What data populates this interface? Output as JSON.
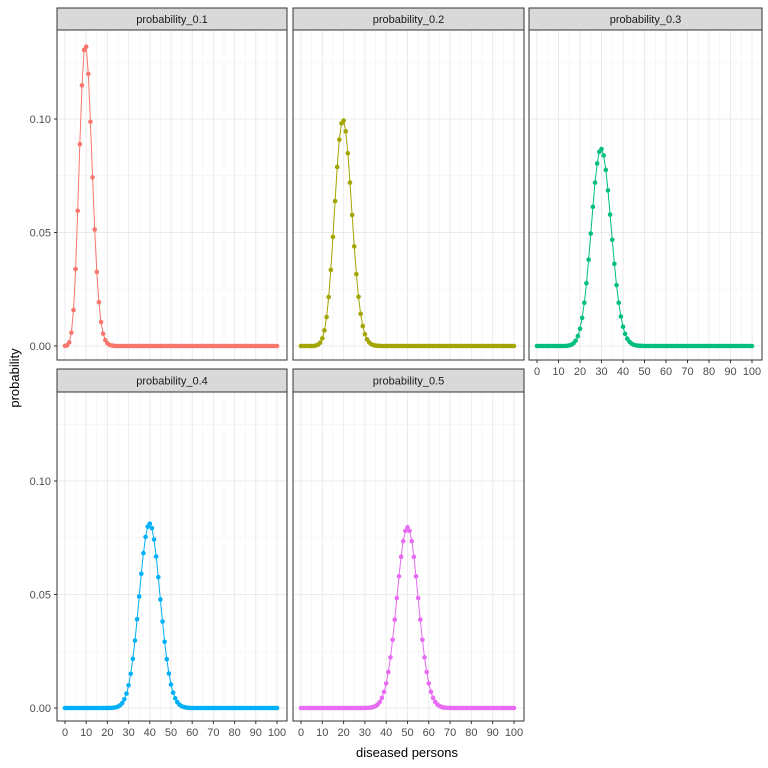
{
  "chart_data": {
    "type": "line",
    "xlabel": "diseased persons",
    "ylabel": "probability",
    "xlim": [
      0,
      100
    ],
    "ylim": [
      0,
      0.13
    ],
    "x_ticks": [
      0,
      10,
      20,
      30,
      40,
      50,
      60,
      70,
      80,
      90,
      100
    ],
    "y_ticks": [
      "0.00",
      "0.05",
      "0.10"
    ],
    "y_tick_values": [
      0,
      0.05,
      0.1
    ],
    "grid": true,
    "markers": true,
    "x": [
      0,
      1,
      2,
      3,
      4,
      5,
      6,
      7,
      8,
      9,
      10,
      11,
      12,
      13,
      14,
      15,
      16,
      17,
      18,
      19,
      20,
      21,
      22,
      23,
      24,
      25,
      26,
      27,
      28,
      29,
      30,
      31,
      32,
      33,
      34,
      35,
      36,
      37,
      38,
      39,
      40,
      41,
      42,
      43,
      44,
      45,
      46,
      47,
      48,
      49,
      50,
      51,
      52,
      53,
      54,
      55,
      56,
      57,
      58,
      59,
      60,
      61,
      62,
      63,
      64,
      65,
      66,
      67,
      68,
      69,
      70,
      71,
      72,
      73,
      74,
      75,
      76,
      77,
      78,
      79,
      80,
      81,
      82,
      83,
      84,
      85,
      86,
      87,
      88,
      89,
      90,
      91,
      92,
      93,
      94,
      95,
      96,
      97,
      98,
      99,
      100
    ],
    "series": [
      {
        "name": "probability_0.1",
        "color": "#F8766D",
        "values": [
          3e-05,
          0.0003,
          0.00162,
          0.00589,
          0.01588,
          0.03387,
          0.05958,
          0.0889,
          0.11482,
          0.13042,
          0.13187,
          0.11988,
          0.09879,
          0.0743,
          0.0513,
          0.03268,
          0.01929,
          0.01059,
          0.00543,
          0.0026,
          0.00117,
          0.0005,
          0.0002,
          7e-05,
          0,
          0,
          0,
          0,
          0,
          0,
          0,
          0,
          0,
          0,
          0,
          0,
          0,
          0,
          0,
          0,
          0,
          0,
          0,
          0,
          0,
          0,
          0,
          0,
          0,
          0,
          0,
          0,
          0,
          0,
          0,
          0,
          0,
          0,
          0,
          0,
          0,
          0,
          0,
          0,
          0,
          0,
          0,
          0,
          0,
          0,
          0,
          0,
          0,
          0,
          0,
          0,
          0,
          0,
          0,
          0,
          0,
          0,
          0,
          0,
          0,
          0,
          0,
          0,
          0,
          0,
          0,
          0,
          0,
          0,
          0,
          0,
          0,
          0,
          0,
          0,
          0
        ]
      },
      {
        "name": "probability_0.2",
        "color": "#A3A500",
        "values": [
          0,
          0,
          0,
          0,
          0,
          0,
          6e-05,
          0.0002,
          0.00058,
          0.00148,
          0.00336,
          0.00688,
          0.01275,
          0.02158,
          0.03353,
          0.04806,
          0.06383,
          0.07885,
          0.0909,
          0.09807,
          0.0993,
          0.09457,
          0.0849,
          0.07198,
          0.05773,
          0.04388,
          0.03164,
          0.02168,
          0.01413,
          0.00877,
          0.00519,
          0.00293,
          0.00158,
          0.00081,
          0.0004,
          0.00019,
          8e-05,
          4e-05,
          0,
          0,
          0,
          0,
          0,
          0,
          0,
          0,
          0,
          0,
          0,
          0,
          0,
          0,
          0,
          0,
          0,
          0,
          0,
          0,
          0,
          0,
          0,
          0,
          0,
          0,
          0,
          0,
          0,
          0,
          0,
          0,
          0,
          0,
          0,
          0,
          0,
          0,
          0,
          0,
          0,
          0,
          0,
          0,
          0,
          0,
          0,
          0,
          0,
          0,
          0,
          0,
          0,
          0,
          0,
          0,
          0,
          0,
          0,
          0,
          0,
          0,
          0
        ]
      },
      {
        "name": "probability_0.3",
        "color": "#00BF7D",
        "values": [
          0,
          0,
          0,
          0,
          0,
          0,
          0,
          0,
          0,
          0,
          0,
          0,
          0,
          0,
          0.0001,
          0.00025,
          0.00056,
          0.00119,
          0.00236,
          0.00437,
          0.00758,
          0.01237,
          0.01904,
          0.02767,
          0.03804,
          0.04956,
          0.06127,
          0.07197,
          0.08041,
          0.08556,
          0.08678,
          0.08398,
          0.07761,
          0.06854,
          0.05788,
          0.04678,
          0.0362,
          0.02683,
          0.01907,
          0.01299,
          0.00849,
          0.00532,
          0.00321,
          0.00185,
          0.00103,
          0.00055,
          0.00028,
          0.00014,
          7e-05,
          3e-05,
          0,
          0,
          0,
          0,
          0,
          0,
          0,
          0,
          0,
          0,
          0,
          0,
          0,
          0,
          0,
          0,
          0,
          0,
          0,
          0,
          0,
          0,
          0,
          0,
          0,
          0,
          0,
          0,
          0,
          0,
          0,
          0,
          0,
          0,
          0,
          0,
          0,
          0,
          0,
          0,
          0,
          0,
          0,
          0,
          0,
          0,
          0,
          0,
          0,
          0,
          0
        ]
      },
      {
        "name": "probability_0.4",
        "color": "#00B0F6",
        "values": [
          0,
          0,
          0,
          0,
          0,
          0,
          0,
          0,
          0,
          0,
          0,
          0,
          0,
          0,
          0,
          0,
          0,
          0,
          0,
          0,
          1e-05,
          2e-05,
          6e-05,
          0.00014,
          0.00031,
          0.00063,
          0.00121,
          0.00221,
          0.00383,
          0.00634,
          0.01001,
          0.01507,
          0.02166,
          0.02975,
          0.03908,
          0.04913,
          0.05914,
          0.0682,
          0.07538,
          0.07989,
          0.08122,
          0.07924,
          0.07421,
          0.06673,
          0.05763,
          0.04781,
          0.03811,
          0.02919,
          0.02149,
          0.0152,
          0.01034,
          0.00676,
          0.00425,
          0.00256,
          0.00149,
          0.00083,
          0.00044,
          0.00023,
          0.00011,
          5e-05,
          0,
          0,
          0,
          0,
          0,
          0,
          0,
          0,
          0,
          0,
          0,
          0,
          0,
          0,
          0,
          0,
          0,
          0,
          0,
          0,
          0,
          0,
          0,
          0,
          0,
          0,
          0,
          0,
          0,
          0,
          0,
          0,
          0,
          0,
          0,
          0,
          0,
          0,
          0,
          0,
          0
        ]
      },
      {
        "name": "probability_0.5",
        "color": "#E76BF3",
        "values": [
          0,
          0,
          0,
          0,
          0,
          0,
          0,
          0,
          0,
          0,
          0,
          0,
          0,
          0,
          0,
          0,
          0,
          0,
          0,
          0,
          0,
          0,
          0,
          0,
          0,
          0,
          0,
          0,
          0,
          0,
          2e-05,
          5e-05,
          0.00011,
          0.00023,
          0.00046,
          0.00086,
          0.00156,
          0.0027,
          0.00447,
          0.00711,
          0.01084,
          0.01587,
          0.02229,
          0.03007,
          0.03895,
          0.04847,
          0.05796,
          0.06659,
          0.07353,
          0.07803,
          0.07959,
          0.07803,
          0.07353,
          0.06659,
          0.05796,
          0.04847,
          0.03895,
          0.03007,
          0.02229,
          0.01587,
          0.01084,
          0.00711,
          0.00447,
          0.0027,
          0.00156,
          0.00086,
          0.00046,
          0.00023,
          0.00011,
          5e-05,
          2e-05,
          0,
          0,
          0,
          0,
          0,
          0,
          0,
          0,
          0,
          0,
          0,
          0,
          0,
          0,
          0,
          0,
          0,
          0,
          0,
          0,
          0,
          0,
          0,
          0,
          0,
          0,
          0,
          0,
          0,
          0
        ]
      }
    ]
  }
}
